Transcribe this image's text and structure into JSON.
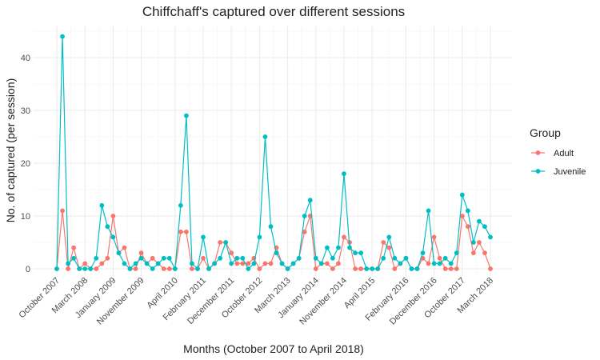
{
  "chart_data": {
    "type": "line",
    "title": "Chiffchaff's captured over different sessions",
    "xlabel": "Months (October 2007 to April 2018)",
    "ylabel": "No. of captured (per session)",
    "x_tick_labels": [
      "October 2007",
      "March 2008",
      "January 2009",
      "November 2009",
      "April 2010",
      "February 2011",
      "December 2011",
      "October 2012",
      "March 2013",
      "January 2014",
      "November 2014",
      "April 2015",
      "February 2016",
      "December 2016",
      "October 2017",
      "March 2018"
    ],
    "ylim": [
      -2,
      46
    ],
    "y_ticks": [
      0,
      10,
      20,
      30,
      40
    ],
    "grid": true,
    "legend": {
      "title": "Group",
      "position": "right"
    },
    "series": [
      {
        "name": "Adult",
        "color": "#F8766D",
        "values": [
          0,
          11,
          0,
          4,
          0,
          1,
          0,
          0,
          1,
          2,
          10,
          3,
          4,
          0,
          0,
          3,
          1,
          2,
          1,
          0,
          0,
          0,
          7,
          7,
          0,
          0,
          2,
          0,
          1,
          5,
          5,
          3,
          1,
          1,
          1,
          2,
          0,
          1,
          1,
          4,
          1,
          0,
          1,
          2,
          7,
          10,
          0,
          1,
          1,
          0,
          1,
          6,
          5,
          0,
          0,
          0,
          0,
          0,
          5,
          4,
          0,
          1,
          2,
          0,
          0,
          2,
          1,
          6,
          2,
          0,
          0,
          0,
          10,
          8,
          3,
          5,
          3,
          0
        ]
      },
      {
        "name": "Juvenile",
        "color": "#00BFC4",
        "values": [
          0,
          44,
          1,
          2,
          0,
          0,
          0,
          2,
          12,
          8,
          6,
          3,
          1,
          0,
          1,
          2,
          1,
          0,
          1,
          2,
          2,
          0,
          12,
          29,
          1,
          0,
          6,
          0,
          1,
          2,
          5,
          1,
          2,
          2,
          0,
          1,
          6,
          25,
          8,
          3,
          1,
          0,
          1,
          2,
          10,
          13,
          2,
          1,
          4,
          2,
          4,
          18,
          4,
          3,
          3,
          0,
          0,
          0,
          2,
          6,
          2,
          1,
          2,
          0,
          0,
          3,
          11,
          1,
          1,
          2,
          1,
          3,
          14,
          11,
          5,
          9,
          8,
          6
        ]
      }
    ]
  }
}
